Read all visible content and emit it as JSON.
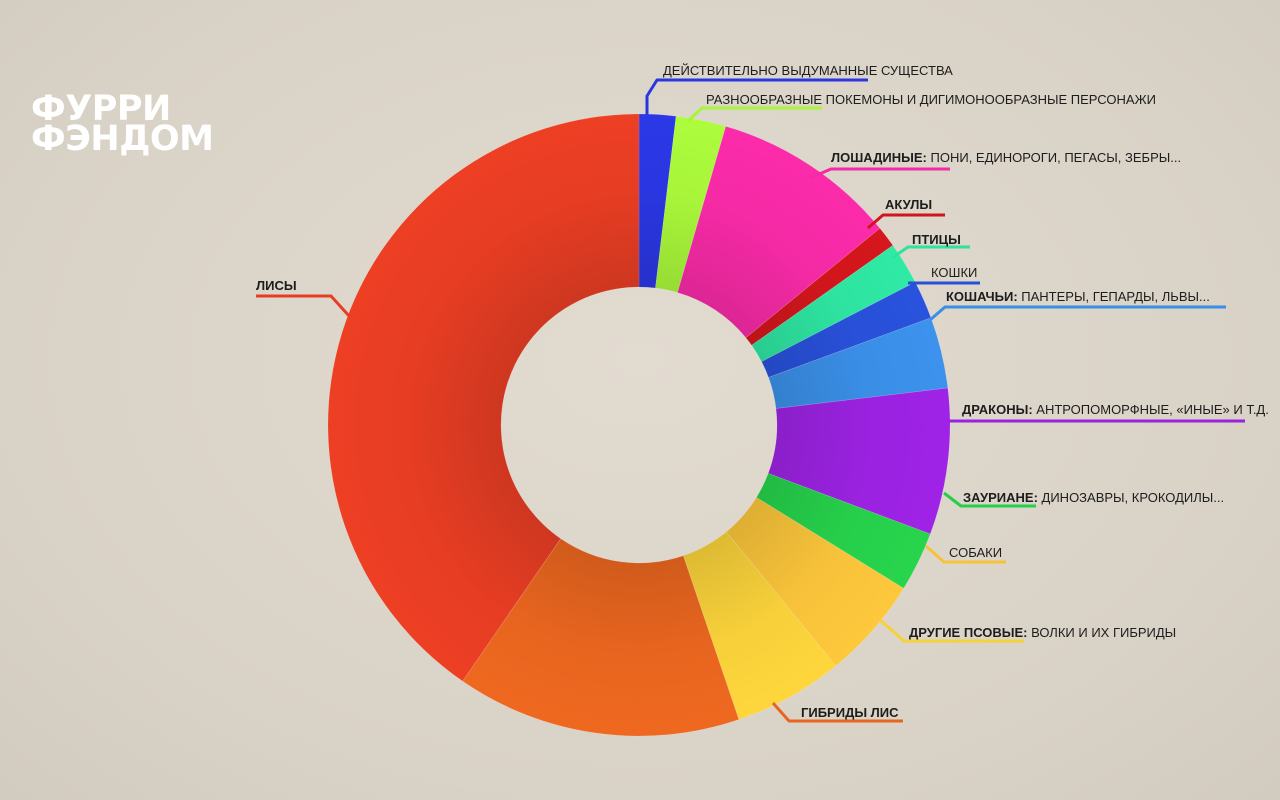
{
  "header": {
    "title_line1": "ФУРРИ",
    "title_line2": "ФЭНДОМ"
  },
  "chart_data": {
    "type": "pie",
    "hole": "donut",
    "unit": "%",
    "slices": [
      {
        "id": "fictional",
        "bold": "",
        "text": "ДЕЙСТВИТЕЛЬНО ВЫДУМАННЫЕ СУЩЕСТВА",
        "value": 1.9,
        "color": "#2a36e0"
      },
      {
        "id": "pokemon",
        "bold": "",
        "text": "РАЗНООБРАЗНЫЕ ПОКЕМОНЫ И ДИГИМОНООБРАЗНЫЕ ПЕРСОНАЖИ",
        "value": 2.6,
        "color": "#a8f53a"
      },
      {
        "id": "equines",
        "bold": "ЛОШАДИНЫЕ:",
        "text": "ПОНИ, ЕДИНОРОГИ, ПЕГАСЫ, ЗЕБРЫ...",
        "value": 9.6,
        "color": "#f52aa5"
      },
      {
        "id": "sharks",
        "bold": "АКУЛЫ",
        "text": "",
        "value": 1.1,
        "color": "#d0161c"
      },
      {
        "id": "birds",
        "bold": "ПТИЦЫ",
        "text": "",
        "value": 2.2,
        "color": "#2ee3a0"
      },
      {
        "id": "cats",
        "bold": "",
        "text": "КОШКИ",
        "value": 2.0,
        "color": "#2850d8"
      },
      {
        "id": "felines",
        "bold": "КОШАЧЬИ:",
        "text": "ПАНТЕРЫ, ГЕПАРДЫ, ЛЬВЫ...",
        "value": 3.7,
        "color": "#3a8ee6"
      },
      {
        "id": "dragons",
        "bold": "ДРАКОНЫ:",
        "text": "АНТРОПОМОРФНЫЕ, «ИНЫЕ» И Т.Д.",
        "value": 7.6,
        "color": "#9a22e0"
      },
      {
        "id": "saurians",
        "bold": "ЗАУРИАНЕ:",
        "text": "ДИНОЗАВРЫ, КРОКОДИЛЫ...",
        "value": 3.1,
        "color": "#26cf4a"
      },
      {
        "id": "dogs",
        "bold": "",
        "text": "СОБАКИ",
        "value": 5.3,
        "color": "#f7c23a"
      },
      {
        "id": "canines",
        "bold": "ДРУГИЕ ПСОВЫЕ:",
        "text": "ВОЛКИ И ИХ ГИБРИДЫ",
        "value": 5.7,
        "color": "#f7d03a"
      },
      {
        "id": "fox_hybrids",
        "bold": "ГИБРИДЫ ЛИС",
        "text": "",
        "value": 14.8,
        "color": "#e8651f"
      },
      {
        "id": "foxes",
        "bold": "ЛИСЫ",
        "text": "",
        "value": 40.4,
        "color": "#e63d23"
      }
    ]
  }
}
